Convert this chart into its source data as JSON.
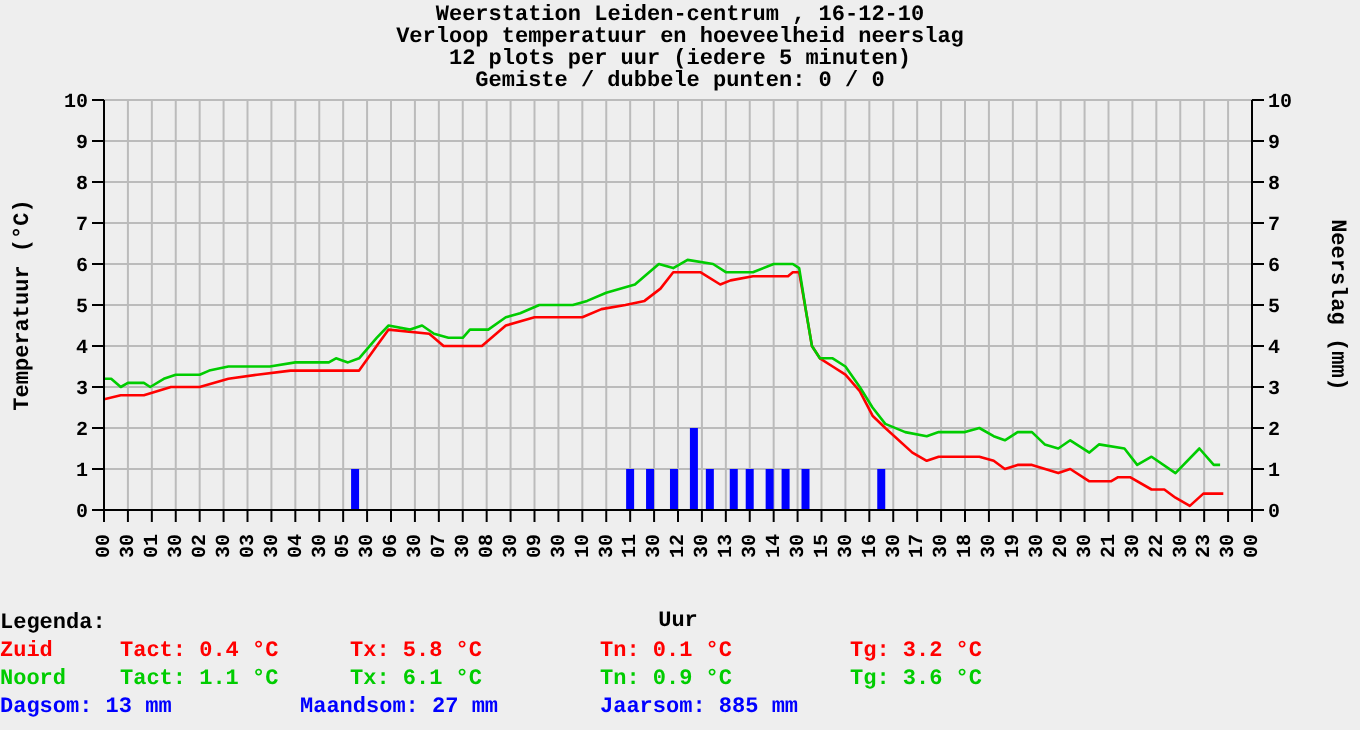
{
  "chart_data": {
    "type": "line",
    "title": "Weerstation Leiden-centrum , 16-12-10",
    "subtitle": "Verloop temperatuur en hoeveelheid neerslag\n12 plots per uur (iedere 5 minuten)\nGemiste / dubbele punten: 0 / 0",
    "xlabel": "Uur",
    "ylabel": "Temperatuur (°C)",
    "y2label": "Neerslag (mm)",
    "xlim": [
      "--12-16T00:00",
      "--12-17T00:00"
    ],
    "xticks": [
      {
        "value": "--12-16T00:00",
        "label": "00"
      },
      {
        "value": "--12-16T00:30",
        "label": "30"
      },
      {
        "value": "--12-16T01:00",
        "label": "01"
      },
      {
        "value": "--12-16T01:30",
        "label": "30"
      },
      {
        "value": "--12-16T02:00",
        "label": "02"
      },
      {
        "value": "--12-16T02:30",
        "label": "30"
      },
      {
        "value": "--12-16T03:00",
        "label": "03"
      },
      {
        "value": "--12-16T03:30",
        "label": "30"
      },
      {
        "value": "--12-16T04:00",
        "label": "04"
      },
      {
        "value": "--12-16T04:30",
        "label": "30"
      },
      {
        "value": "--12-16T05:00",
        "label": "05"
      },
      {
        "value": "--12-16T05:30",
        "label": "30"
      },
      {
        "value": "--12-16T06:00",
        "label": "06"
      },
      {
        "value": "--12-16T06:30",
        "label": "30"
      },
      {
        "value": "--12-16T07:00",
        "label": "07"
      },
      {
        "value": "--12-16T07:30",
        "label": "30"
      },
      {
        "value": "--12-16T08:00",
        "label": "08"
      },
      {
        "value": "--12-16T08:30",
        "label": "30"
      },
      {
        "value": "--12-16T09:00",
        "label": "09"
      },
      {
        "value": "--12-16T09:30",
        "label": "30"
      },
      {
        "value": "--12-16T10:00",
        "label": "10"
      },
      {
        "value": "--12-16T10:30",
        "label": "30"
      },
      {
        "value": "--12-16T11:00",
        "label": "11"
      },
      {
        "value": "--12-16T11:30",
        "label": "30"
      },
      {
        "value": "--12-16T12:00",
        "label": "12"
      },
      {
        "value": "--12-16T12:30",
        "label": "30"
      },
      {
        "value": "--12-16T13:00",
        "label": "13"
      },
      {
        "value": "--12-16T13:30",
        "label": "30"
      },
      {
        "value": "--12-16T14:00",
        "label": "14"
      },
      {
        "value": "--12-16T14:30",
        "label": "30"
      },
      {
        "value": "--12-16T15:00",
        "label": "15"
      },
      {
        "value": "--12-16T15:30",
        "label": "30"
      },
      {
        "value": "--12-16T16:00",
        "label": "16"
      },
      {
        "value": "--12-16T16:30",
        "label": "30"
      },
      {
        "value": "--12-16T17:00",
        "label": "17"
      },
      {
        "value": "--12-16T17:30",
        "label": "30"
      },
      {
        "value": "--12-16T18:00",
        "label": "18"
      },
      {
        "value": "--12-16T18:30",
        "label": "30"
      },
      {
        "value": "--12-16T19:00",
        "label": "19"
      },
      {
        "value": "--12-16T19:30",
        "label": "30"
      },
      {
        "value": "--12-16T20:00",
        "label": "20"
      },
      {
        "value": "--12-16T20:30",
        "label": "30"
      },
      {
        "value": "--12-16T21:00",
        "label": "21"
      },
      {
        "value": "--12-16T21:30",
        "label": "30"
      },
      {
        "value": "--12-16T22:00",
        "label": "22"
      },
      {
        "value": "--12-16T22:30",
        "label": "30"
      },
      {
        "value": "--12-16T23:00",
        "label": "23"
      },
      {
        "value": "--12-16T23:30",
        "label": "30"
      },
      {
        "value": "--12-17T00:00",
        "label": "00"
      }
    ],
    "ylim": [
      0,
      10
    ],
    "yticks": [
      0,
      1,
      2,
      3,
      4,
      5,
      6,
      7,
      8,
      9,
      10
    ],
    "y2lim": [
      0,
      10
    ],
    "y2ticks": [
      0,
      1,
      2,
      3,
      4,
      5,
      6,
      7,
      8,
      9,
      10
    ],
    "grid": true,
    "legend": "bottom",
    "series": [
      {
        "name": "Zuid",
        "color": "#ff0000",
        "x": [
          "--12-16T00:00",
          "--12-16T00:21",
          "--12-16T00:50",
          "--12-16T01:24",
          "--12-16T02:00",
          "--12-16T02:36",
          "--12-16T03:12",
          "--12-16T03:54",
          "--12-16T05:20",
          "--12-16T05:42",
          "--12-16T05:57",
          "--12-16T06:48",
          "--12-16T07:06",
          "--12-16T07:54",
          "--12-16T08:24",
          "--12-16T09:00",
          "--12-16T10:00",
          "--12-16T10:24",
          "--12-16T10:54",
          "--12-16T11:18",
          "--12-16T11:38",
          "--12-16T11:54",
          "--12-16T12:28",
          "--12-16T12:53",
          "--12-16T13:06",
          "--12-16T13:34",
          "--12-16T14:18",
          "--12-16T14:24",
          "--12-16T14:32",
          "--12-16T14:41",
          "--12-16T14:48",
          "--12-16T14:58",
          "--12-16T15:14",
          "--12-16T15:30",
          "--12-16T15:48",
          "--12-16T16:04",
          "--12-16T16:20",
          "--12-16T16:54",
          "--12-16T17:12",
          "--12-16T17:27",
          "--12-16T18:18",
          "--12-16T18:36",
          "--12-16T18:50",
          "--12-16T19:06",
          "--12-16T19:24",
          "--12-16T19:57",
          "--12-16T20:12",
          "--12-16T20:36",
          "--12-16T21:03",
          "--12-16T21:12",
          "--12-16T21:27",
          "--12-16T21:54",
          "--12-16T22:10",
          "--12-16T22:24",
          "--12-16T22:42",
          "--12-16T22:59",
          "--12-16T23:06",
          "--12-16T23:24"
        ],
        "values": [
          2.7,
          2.8,
          2.8,
          3.0,
          3.0,
          3.2,
          3.3,
          3.4,
          3.4,
          4.0,
          4.4,
          4.3,
          4.0,
          4.0,
          4.5,
          4.7,
          4.7,
          4.9,
          5.0,
          5.1,
          5.4,
          5.8,
          5.8,
          5.5,
          5.6,
          5.7,
          5.7,
          5.8,
          5.8,
          4.8,
          4.0,
          3.7,
          3.5,
          3.3,
          2.9,
          2.3,
          2.0,
          1.4,
          1.2,
          1.3,
          1.3,
          1.2,
          1.0,
          1.1,
          1.1,
          0.9,
          1.0,
          0.7,
          0.7,
          0.8,
          0.8,
          0.5,
          0.5,
          0.3,
          0.1,
          0.4,
          0.4,
          0.4
        ]
      },
      {
        "name": "Noord",
        "color": "#00cc00",
        "x": [
          "--12-16T00:00",
          "--12-16T00:09",
          "--12-16T00:21",
          "--12-16T00:30",
          "--12-16T00:50",
          "--12-16T00:58",
          "--12-16T01:15",
          "--12-16T01:30",
          "--12-16T02:00",
          "--12-16T02:12",
          "--12-16T02:36",
          "--12-16T03:28",
          "--12-16T04:00",
          "--12-16T04:42",
          "--12-16T04:51",
          "--12-16T05:06",
          "--12-16T05:20",
          "--12-16T05:42",
          "--12-16T05:57",
          "--12-16T06:24",
          "--12-16T06:39",
          "--12-16T06:54",
          "--12-16T07:12",
          "--12-16T07:30",
          "--12-16T07:39",
          "--12-16T08:02",
          "--12-16T08:24",
          "--12-16T08:42",
          "--12-16T09:06",
          "--12-16T09:48",
          "--12-16T10:06",
          "--12-16T10:30",
          "--12-16T11:06",
          "--12-16T11:18",
          "--12-16T11:36",
          "--12-16T11:54",
          "--12-16T12:12",
          "--12-16T12:44",
          "--12-16T13:00",
          "--12-16T13:34",
          "--12-16T14:00",
          "--12-16T14:24",
          "--12-16T14:32",
          "--12-16T14:41",
          "--12-16T14:48",
          "--12-16T14:58",
          "--12-16T15:14",
          "--12-16T15:30",
          "--12-16T15:48",
          "--12-16T16:04",
          "--12-16T16:20",
          "--12-16T16:45",
          "--12-16T17:12",
          "--12-16T17:27",
          "--12-16T18:00",
          "--12-16T18:18",
          "--12-16T18:36",
          "--12-16T18:50",
          "--12-16T19:06",
          "--12-16T19:24",
          "--12-16T19:40",
          "--12-16T19:57",
          "--12-16T20:12",
          "--12-16T20:36",
          "--12-16T20:48",
          "--12-16T21:20",
          "--12-16T21:36",
          "--12-16T21:54",
          "--12-16T22:24",
          "--12-16T22:54",
          "--12-16T23:12",
          "--12-16T23:20"
        ],
        "values": [
          3.2,
          3.2,
          3.0,
          3.1,
          3.1,
          3.0,
          3.2,
          3.3,
          3.3,
          3.4,
          3.5,
          3.5,
          3.6,
          3.6,
          3.7,
          3.6,
          3.7,
          4.2,
          4.5,
          4.4,
          4.5,
          4.3,
          4.2,
          4.2,
          4.4,
          4.4,
          4.7,
          4.8,
          5.0,
          5.0,
          5.1,
          5.3,
          5.5,
          5.7,
          6.0,
          5.9,
          6.1,
          6.0,
          5.8,
          5.8,
          6.0,
          6.0,
          5.9,
          4.8,
          4.0,
          3.7,
          3.7,
          3.5,
          3.0,
          2.5,
          2.1,
          1.9,
          1.8,
          1.9,
          1.9,
          2.0,
          1.8,
          1.7,
          1.9,
          1.9,
          1.6,
          1.5,
          1.7,
          1.4,
          1.6,
          1.5,
          1.1,
          1.3,
          0.9,
          1.5,
          1.1,
          1.1
        ]
      },
      {
        "type": "bar",
        "axis": "y2",
        "color": "#0000ff",
        "x": [
          "--12-16T05:15",
          "--12-16T11:00",
          "--12-16T11:25",
          "--12-16T11:55",
          "--12-16T12:20",
          "--12-16T12:40",
          "--12-16T13:10",
          "--12-16T13:30",
          "--12-16T13:55",
          "--12-16T14:15",
          "--12-16T14:40",
          "--12-16T16:15"
        ],
        "values": [
          1,
          1,
          1,
          1,
          2,
          1,
          1,
          1,
          1,
          1,
          1,
          1
        ]
      }
    ],
    "annotations": [
      "Legenda:",
      "Tact: 0.4 °C",
      "Tx: 5.8 °C",
      "Tn: 0.1 °C",
      "Tg: 3.2 °C",
      "Tact: 1.1 °C",
      "Tx: 6.1 °C",
      "Tn: 0.9 °C",
      "Tg: 3.6 °C",
      "Dagsom: 13 mm",
      "Maandsom: 27 mm",
      "Jaarsom: 885 mm"
    ]
  }
}
